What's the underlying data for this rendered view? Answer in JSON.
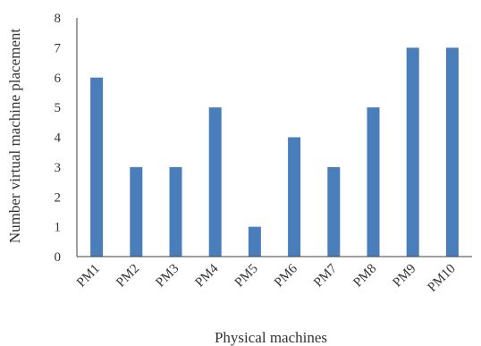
{
  "chart_data": {
    "type": "bar",
    "title": "",
    "xlabel": "Physical machines",
    "ylabel": "Number virtual machine placement",
    "categories": [
      "PM1",
      "PM2",
      "PM3",
      "PM4",
      "PM5",
      "PM6",
      "PM7",
      "PM8",
      "PM9",
      "PM10"
    ],
    "values": [
      6,
      3,
      3,
      5,
      1,
      4,
      3,
      5,
      7,
      7
    ],
    "ylim": [
      0,
      8
    ],
    "yticks": [
      "0",
      "1",
      "2",
      "3",
      "4",
      "5",
      "6",
      "7",
      "8"
    ],
    "grid": false,
    "legend": "none",
    "bar_color": "#4a7ebb",
    "axis_color": "#404040"
  }
}
